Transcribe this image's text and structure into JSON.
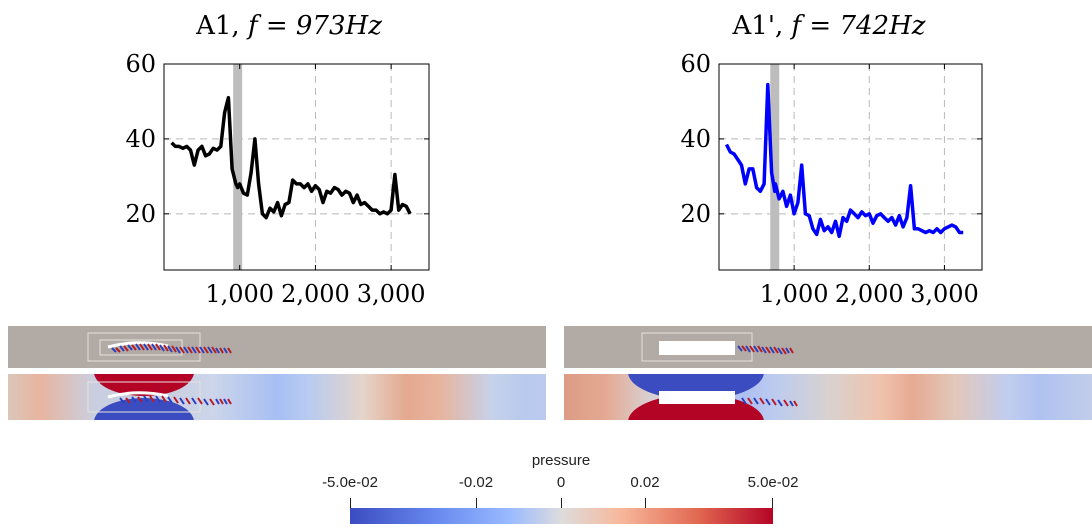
{
  "chart_data": [
    {
      "type": "line",
      "title_text": "A1, ",
      "title_math": "f = 973Hz",
      "xlabel": "",
      "ylabel": "",
      "xlim": [
        0,
        3500
      ],
      "ylim": [
        5,
        60
      ],
      "xticks": [
        "1,000",
        "2,000",
        "3,000"
      ],
      "yticks": [
        "60",
        "40",
        "20"
      ],
      "grid": true,
      "highlight_band_x": 973,
      "series": [
        {
          "color": "#000000",
          "x": [
            100,
            150,
            200,
            250,
            300,
            350,
            400,
            450,
            500,
            550,
            600,
            650,
            700,
            750,
            800,
            850,
            900,
            950,
            973,
            1000,
            1050,
            1100,
            1150,
            1200,
            1250,
            1300,
            1350,
            1400,
            1450,
            1500,
            1550,
            1600,
            1650,
            1700,
            1750,
            1800,
            1850,
            1900,
            1950,
            2000,
            2050,
            2100,
            2150,
            2200,
            2250,
            2300,
            2350,
            2400,
            2450,
            2500,
            2550,
            2600,
            2650,
            2700,
            2750,
            2800,
            2850,
            2900,
            2950,
            3000,
            3050,
            3100,
            3150,
            3200,
            3250
          ],
          "y": [
            39,
            38,
            38,
            37.5,
            38,
            37,
            33,
            37,
            38,
            35.5,
            36,
            37.5,
            37,
            38,
            47,
            51,
            32,
            28,
            27,
            28,
            25.5,
            25,
            31,
            40,
            28,
            20,
            19,
            21.5,
            20.5,
            23,
            19.5,
            22.5,
            23,
            29,
            28,
            28,
            27,
            28,
            26,
            27.5,
            26.5,
            23,
            26,
            25.5,
            27,
            26.5,
            25,
            26,
            25.5,
            23,
            25,
            22.5,
            23,
            22,
            21,
            21,
            20,
            20.5,
            20,
            21,
            30.5,
            21,
            22.5,
            22,
            20
          ]
        }
      ]
    },
    {
      "type": "line",
      "title_text": "A1', ",
      "title_math": "f = 742Hz",
      "xlabel": "",
      "ylabel": "",
      "xlim": [
        0,
        3500
      ],
      "ylim": [
        5,
        60
      ],
      "xticks": [
        "1,000",
        "2,000",
        "3,000"
      ],
      "yticks": [
        "60",
        "40",
        "20"
      ],
      "grid": true,
      "highlight_band_x": 742,
      "series": [
        {
          "color": "#0000ff",
          "x": [
            100,
            150,
            200,
            250,
            300,
            350,
            400,
            450,
            500,
            550,
            600,
            650,
            700,
            742,
            750,
            800,
            850,
            900,
            950,
            1000,
            1050,
            1100,
            1150,
            1200,
            1250,
            1300,
            1350,
            1400,
            1450,
            1500,
            1550,
            1600,
            1650,
            1700,
            1750,
            1800,
            1850,
            1900,
            1950,
            2000,
            2050,
            2100,
            2150,
            2200,
            2250,
            2300,
            2350,
            2400,
            2450,
            2500,
            2550,
            2600,
            2650,
            2700,
            2750,
            2800,
            2850,
            2900,
            2950,
            3000,
            3050,
            3100,
            3150,
            3200,
            3250
          ],
          "y": [
            38.5,
            36.5,
            36,
            34.5,
            33,
            28,
            32,
            32,
            27,
            26,
            28,
            54.5,
            31,
            26,
            28,
            24,
            26,
            22,
            25,
            20,
            23,
            33,
            20,
            19.5,
            16,
            14.5,
            18.5,
            15.5,
            16.5,
            15,
            18,
            14,
            19,
            18,
            21,
            20,
            19,
            20.5,
            19.5,
            20,
            17.5,
            19.5,
            20,
            19,
            18,
            19,
            17,
            19.5,
            16.5,
            19,
            27.5,
            16,
            16,
            15.5,
            15,
            15.5,
            15,
            16,
            15,
            16,
            16.5,
            17,
            16.5,
            15,
            15
          ]
        }
      ]
    }
  ],
  "colorbar": {
    "title": "pressure",
    "tick_labels": [
      "-5.0e-02",
      "-0.02",
      "0",
      "0.02",
      "5.0e-02"
    ],
    "tick_values": [
      -0.05,
      -0.02,
      0,
      0.02,
      0.05
    ],
    "range": [
      -0.05,
      0.05
    ],
    "colors": [
      "#3b4cc0",
      "#8db0fe",
      "#dddcdc",
      "#f49a7b",
      "#b40426"
    ]
  },
  "fields": {
    "background_color": "#b2aba5",
    "blue": "#3b4cc0",
    "red": "#b40426"
  }
}
